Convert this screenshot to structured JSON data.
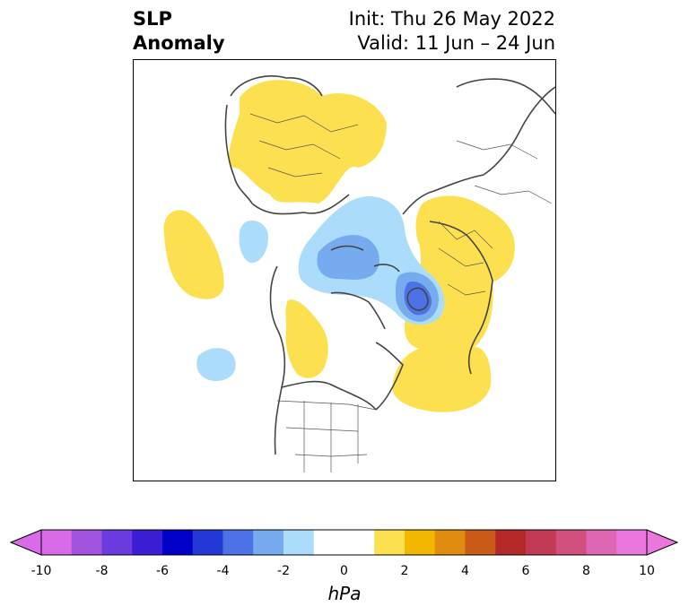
{
  "header": {
    "title_line1": "SLP",
    "title_line2": "Anomaly",
    "init_line": "Init: Thu 26 May 2022",
    "valid_line": "Valid: 11 Jun – 24 Jun"
  },
  "colorbar": {
    "unit": "hPa",
    "ticks": [
      "-10",
      "-8",
      "-6",
      "-4",
      "-2",
      "0",
      "2",
      "4",
      "6",
      "8",
      "10"
    ],
    "colors": [
      "#d96ae8",
      "#a153dd",
      "#6c3bdf",
      "#3b1ed3",
      "#0000c8",
      "#2339d6",
      "#4d72e8",
      "#76abf0",
      "#abdcfb",
      "#ffffff",
      "#ffffff",
      "#fde04f",
      "#f2b800",
      "#e08c10",
      "#c95a18",
      "#b42828",
      "#c23a55",
      "#d2507e",
      "#df66b4",
      "#ea78dc"
    ],
    "under_color": "#d96ae8",
    "over_color": "#ea78dc"
  },
  "map": {
    "projection": "north-polar-stereographic",
    "anomaly_colors": {
      "pos_weak": "#fde04f",
      "neg_weak": "#abdcfb",
      "neg_mid": "#76abf0",
      "neg_strong": "#4d72e8"
    }
  }
}
